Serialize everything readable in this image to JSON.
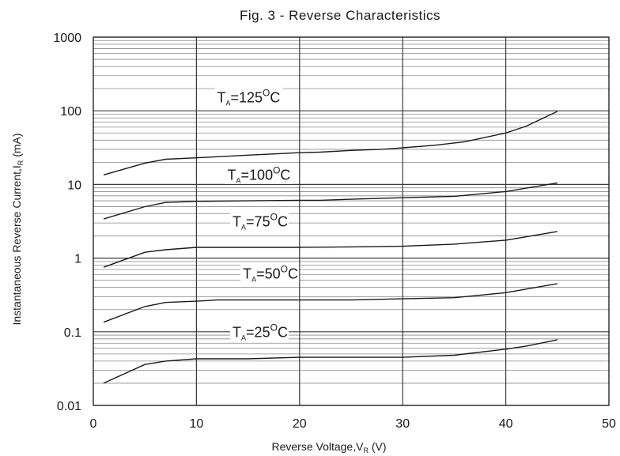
{
  "chart_data": {
    "type": "line",
    "title": "Fig. 3 - Reverse Characteristics",
    "xlabel": {
      "main": "Reverse Voltage,V",
      "sub": "R",
      "unit": " (V)"
    },
    "ylabel": {
      "main": "Instantaneous Reverse Current,I",
      "sub": "R",
      "unit": " (mA)"
    },
    "xlim": [
      0,
      50
    ],
    "ylim": [
      0.01,
      1000
    ],
    "yscale": "log",
    "grid": true,
    "x_ticks": [
      "0",
      "10",
      "20",
      "30",
      "40",
      "50"
    ],
    "y_ticks": [
      "0.01",
      "0.1",
      "1",
      "10",
      "100",
      "1000"
    ],
    "series": [
      {
        "name": {
          "pre": "T",
          "sub": "A",
          "mid": "=125",
          "sup": "O",
          "post": "C"
        },
        "x": [
          1,
          5,
          7,
          10,
          15,
          20,
          22,
          25,
          28,
          30,
          33,
          36,
          40,
          42,
          45
        ],
        "y": [
          13.5,
          19.5,
          22,
          23,
          25,
          27,
          27.5,
          29,
          30,
          31.5,
          34,
          38,
          50,
          62,
          98
        ]
      },
      {
        "name": {
          "pre": "T",
          "sub": "A",
          "mid": "=100",
          "sup": "O",
          "post": "C"
        },
        "x": [
          1,
          5,
          7,
          10,
          15,
          20,
          22,
          25,
          30,
          35,
          40,
          45
        ],
        "y": [
          3.4,
          5.0,
          5.7,
          5.9,
          6.0,
          6.1,
          6.1,
          6.3,
          6.6,
          6.9,
          8.0,
          10.5
        ]
      },
      {
        "name": {
          "pre": "T",
          "sub": "A",
          "mid": "=75",
          "sup": "O",
          "post": "C"
        },
        "x": [
          1,
          5,
          7,
          10,
          15,
          20,
          25,
          30,
          35,
          40,
          42,
          45
        ],
        "y": [
          0.75,
          1.2,
          1.3,
          1.4,
          1.4,
          1.4,
          1.42,
          1.45,
          1.55,
          1.75,
          1.95,
          2.3
        ]
      },
      {
        "name": {
          "pre": "T",
          "sub": "A",
          "mid": "=50",
          "sup": "O",
          "post": "C"
        },
        "x": [
          1,
          5,
          7,
          10,
          12,
          15,
          20,
          25,
          30,
          35,
          40,
          45
        ],
        "y": [
          0.135,
          0.22,
          0.25,
          0.26,
          0.27,
          0.27,
          0.27,
          0.27,
          0.28,
          0.29,
          0.34,
          0.45
        ]
      },
      {
        "name": {
          "pre": "T",
          "sub": "A",
          "mid": "=25",
          "sup": "O",
          "post": "C"
        },
        "x": [
          1,
          5,
          7,
          10,
          15,
          20,
          25,
          30,
          35,
          40,
          42,
          45
        ],
        "y": [
          0.02,
          0.036,
          0.04,
          0.043,
          0.043,
          0.045,
          0.045,
          0.045,
          0.048,
          0.058,
          0.064,
          0.078
        ]
      }
    ],
    "series_label_at_x": [
      12,
      13,
      13.5,
      14.5,
      13.5
    ],
    "series_label_at_y": [
      130,
      11.5,
      2.7,
      0.53,
      0.085
    ]
  }
}
